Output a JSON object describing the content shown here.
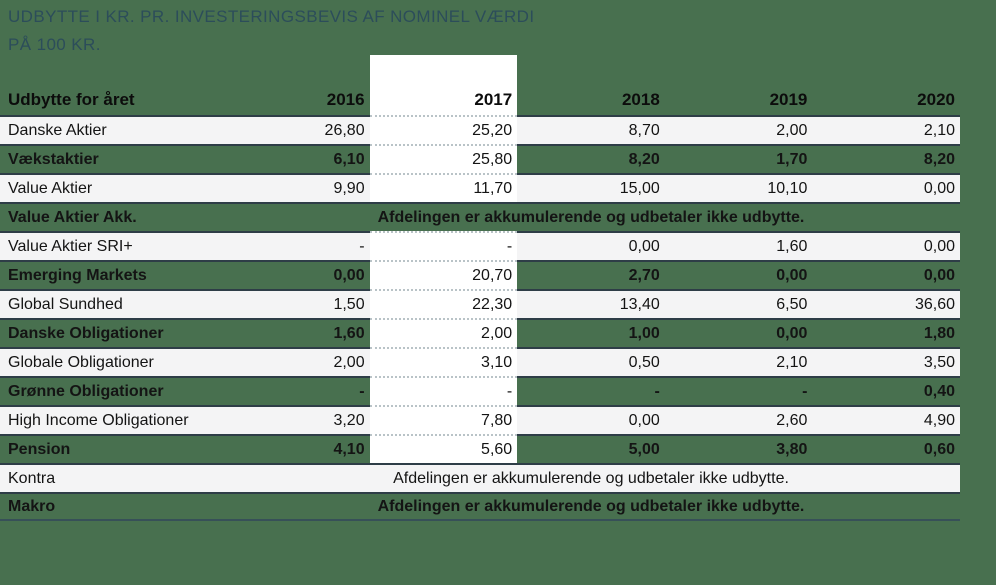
{
  "title": {
    "line1": "UDBYTTE I KR. PR. INVESTERINGSBEVIS AF NOMINEL VÆRDI",
    "line2": "PÅ 100 KR."
  },
  "table": {
    "header": {
      "label": "Udbytte for året",
      "years": [
        "2016",
        "2017",
        "2018",
        "2019",
        "2020"
      ]
    },
    "highlight_year": "2017",
    "accumulating_message": "Afdelingen er akkumulerende og udbetaler ikke udbytte.",
    "rows": [
      {
        "label": "Danske Aktier",
        "values": [
          "26,80",
          "25,20",
          "8,70",
          "2,00",
          "2,10"
        ]
      },
      {
        "label": "Vækstaktier",
        "values": [
          "6,10",
          "25,80",
          "8,20",
          "1,70",
          "8,20"
        ]
      },
      {
        "label": "Value Aktier",
        "values": [
          "9,90",
          "11,70",
          "15,00",
          "10,10",
          "0,00"
        ]
      },
      {
        "label": "Value Aktier Akk.",
        "values": null
      },
      {
        "label": "Value Aktier SRI+",
        "values": [
          "-",
          "-",
          "0,00",
          "1,60",
          "0,00"
        ]
      },
      {
        "label": "Emerging Markets",
        "values": [
          "0,00",
          "20,70",
          "2,70",
          "0,00",
          "0,00"
        ]
      },
      {
        "label": "Global Sundhed",
        "values": [
          "1,50",
          "22,30",
          "13,40",
          "6,50",
          "36,60"
        ]
      },
      {
        "label": "Danske Obligationer",
        "values": [
          "1,60",
          "2,00",
          "1,00",
          "0,00",
          "1,80"
        ]
      },
      {
        "label": "Globale Obligationer",
        "values": [
          "2,00",
          "3,10",
          "0,50",
          "2,10",
          "3,50"
        ]
      },
      {
        "label": "Grønne Obligationer",
        "values": [
          "-",
          "-",
          "-",
          "-",
          "0,40"
        ]
      },
      {
        "label": "High Income Obligationer",
        "values": [
          "3,20",
          "7,80",
          "0,00",
          "2,60",
          "4,90"
        ]
      },
      {
        "label": "Pension",
        "values": [
          "4,10",
          "5,60",
          "5,00",
          "3,80",
          "0,60"
        ]
      },
      {
        "label": "Kontra",
        "values": null
      },
      {
        "label": "Makro",
        "values": null
      }
    ]
  },
  "colors": {
    "page_bg": "#48704F",
    "row_light": "#F4F4F5",
    "highlight_column": "#FFFFFF",
    "separator": "#2E3D47",
    "separator_dotted": "#B9C3C7",
    "bottom_line": "#375058",
    "title_text": "#2C4D5A",
    "table_text": "#141414"
  }
}
